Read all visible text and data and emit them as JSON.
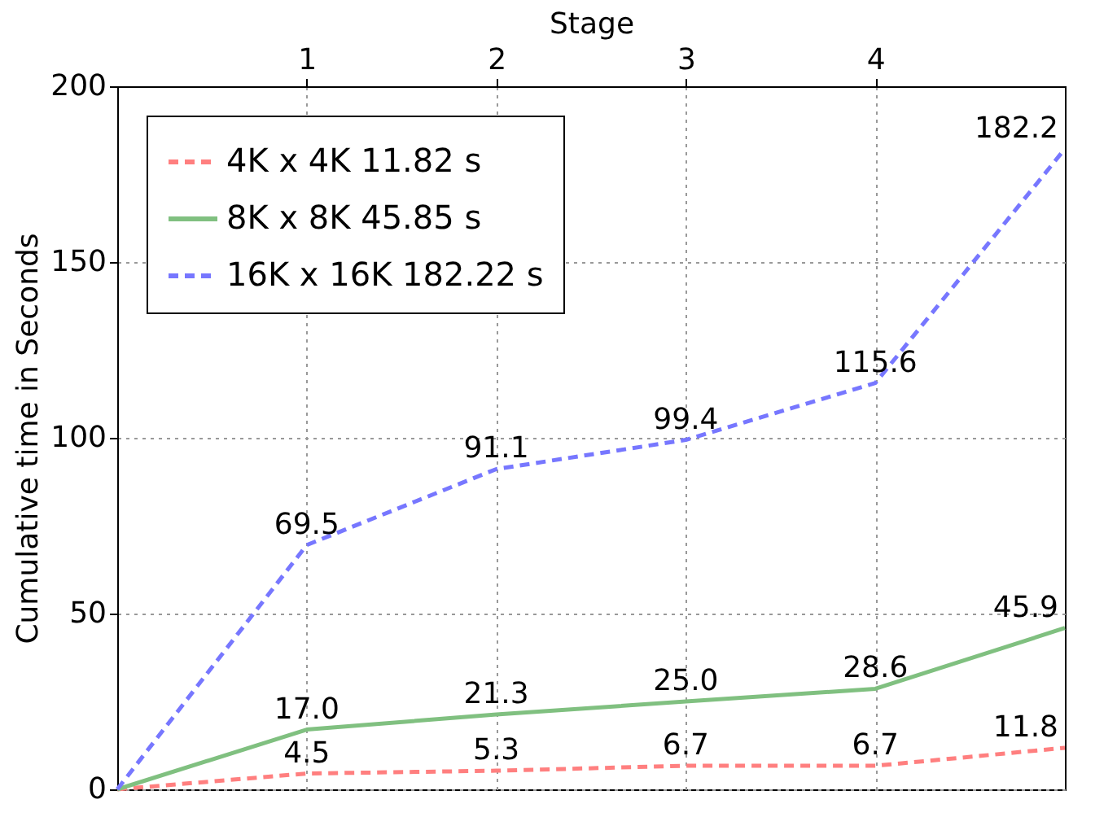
{
  "chart_data": {
    "type": "line",
    "xlabel": "Stage",
    "ylabel": "Cumulative time in Seconds",
    "x": [
      0,
      1,
      2,
      3,
      4,
      5
    ],
    "xlim": [
      0,
      5
    ],
    "xticks": [
      1,
      2,
      3,
      4
    ],
    "ylim": [
      0,
      200
    ],
    "yticks": [
      0,
      50,
      100,
      150,
      200
    ],
    "grid": true,
    "legend": "top left",
    "marker": "none",
    "series": [
      {
        "name": "4K x 4K 11.82 s",
        "color": "#ff7f7f",
        "line_style": "dashed",
        "values": [
          0,
          4.5,
          5.3,
          6.7,
          6.7,
          11.8
        ],
        "value_labels": [
          null,
          "4.5",
          "5.3",
          "6.7",
          "6.7",
          "11.8"
        ]
      },
      {
        "name": "8K x 8K 45.85 s",
        "color": "#80c080",
        "line_style": "solid",
        "values": [
          0,
          17.0,
          21.3,
          25.0,
          28.6,
          45.9
        ],
        "value_labels": [
          null,
          "17.0",
          "21.3",
          "25.0",
          "28.6",
          "45.9"
        ]
      },
      {
        "name": "16K x 16K 182.22 s",
        "color": "#7777ff",
        "line_style": "dashed",
        "values": [
          0,
          69.5,
          91.1,
          99.4,
          115.6,
          182.2
        ],
        "value_labels": [
          null,
          "69.5",
          "91.1",
          "99.4",
          "115.6",
          "182.2"
        ]
      }
    ]
  }
}
